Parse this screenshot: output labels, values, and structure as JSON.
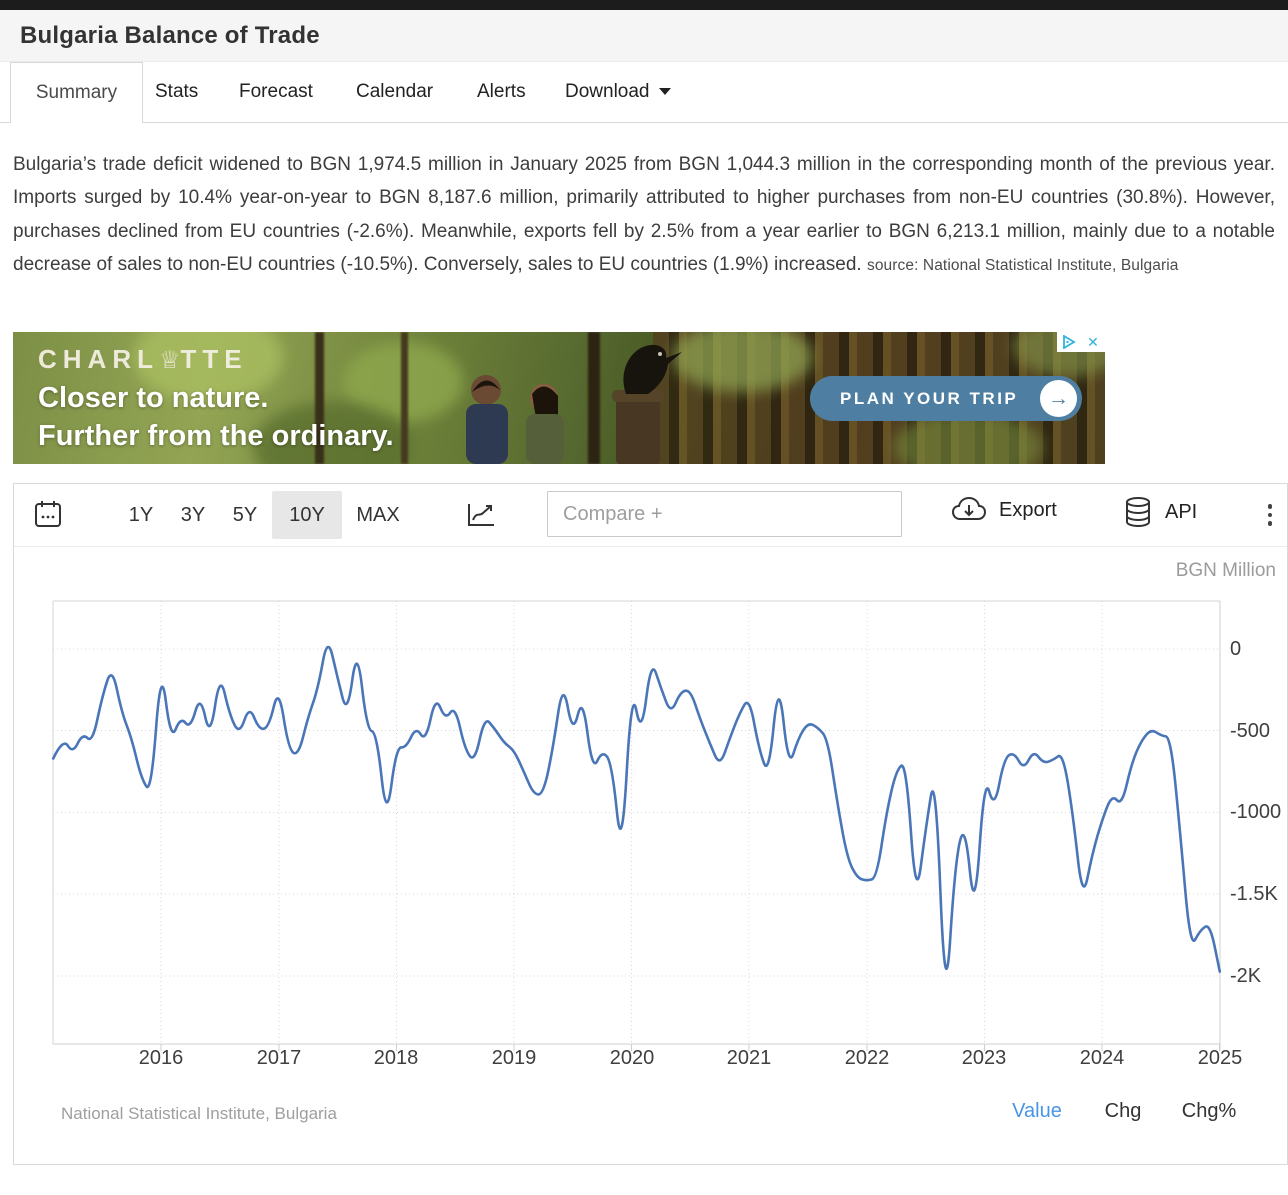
{
  "page": {
    "title": "Bulgaria Balance of Trade"
  },
  "tabs": [
    {
      "label": "Summary",
      "active": true
    },
    {
      "label": "Stats"
    },
    {
      "label": "Forecast"
    },
    {
      "label": "Calendar"
    },
    {
      "label": "Alerts"
    },
    {
      "label": "Download",
      "has_menu": true
    }
  ],
  "summary": {
    "text": "Bulgaria’s trade deficit widened to BGN 1,974.5 million in January 2025 from BGN 1,044.3 million in the corresponding month of the previous year. Imports surged by 10.4% year-on-year to BGN 8,187.6 million, primarily attributed to higher purchases from non-EU countries (30.8%). However, purchases declined from EU countries (-2.6%). Meanwhile, exports fell by 2.5% from a year earlier to BGN 6,213.1 million, mainly due to a notable decrease of sales to non-EU countries (-10.5%). Conversely, sales to EU countries (1.9%) increased.",
    "source_label": "source: National Statistical Institute, Bulgaria"
  },
  "ad": {
    "brand_left": "CHARL",
    "crown_glyph": "♕",
    "brand_right": "TTE",
    "tagline1": "Closer to nature.",
    "tagline2": "Further from the ordinary.",
    "cta_label": "PLAN YOUR TRIP",
    "cta_arrow_glyph": "→",
    "close_glyph": "✕"
  },
  "toolbar": {
    "ranges": [
      "1Y",
      "3Y",
      "5Y",
      "10Y",
      "MAX"
    ],
    "active_range": "10Y",
    "compare_placeholder": "Compare +",
    "export_label": "Export",
    "api_label": "API",
    "icons": {
      "calendar": "calendar-icon",
      "chart_type": "line-chart-icon",
      "export": "cloud-download-icon",
      "api": "database-icon",
      "menu": "kebab-menu-icon"
    }
  },
  "chart": {
    "source_note": "National Statistical Institute, Bulgaria",
    "links": [
      {
        "label": "Value",
        "active": true
      },
      {
        "label": "Chg"
      },
      {
        "label": "Chg%"
      }
    ]
  },
  "chart_data": {
    "type": "line",
    "title": "Bulgaria Balance of Trade",
    "unit": "BGN Million",
    "frequency": "monthly",
    "start": "2015-02",
    "end": "2025-01",
    "line_color": "#4a76b8",
    "grid": "dotted",
    "x_tick_labels": [
      "2016",
      "2017",
      "2018",
      "2019",
      "2020",
      "2021",
      "2022",
      "2023",
      "2024",
      "2025"
    ],
    "y_tick_labels": [
      "0",
      "-500",
      "-1000",
      "-1.5K",
      "-2K"
    ],
    "y_tick_values": [
      0,
      -500,
      -1000,
      -1500,
      -2000
    ],
    "ylim": [
      -2417,
      294
    ],
    "values": [
      -670,
      -545,
      -640,
      -515,
      -575,
      -290,
      -105,
      -390,
      -545,
      -795,
      -885,
      -80,
      -565,
      -415,
      -490,
      -275,
      -555,
      -145,
      -405,
      -525,
      -345,
      -495,
      -480,
      -225,
      -615,
      -655,
      -415,
      -245,
      85,
      -175,
      -415,
      30,
      -495,
      -510,
      -1065,
      -600,
      -605,
      -475,
      -570,
      -285,
      -435,
      -345,
      -615,
      -695,
      -415,
      -485,
      -575,
      -620,
      -750,
      -890,
      -890,
      -600,
      -190,
      -530,
      -280,
      -750,
      -620,
      -700,
      -1290,
      -220,
      -540,
      -60,
      -240,
      -400,
      -260,
      -250,
      -430,
      -580,
      -720,
      -550,
      -395,
      -290,
      -615,
      -780,
      -160,
      -735,
      -545,
      -450,
      -480,
      -550,
      -950,
      -1280,
      -1400,
      -1420,
      -1400,
      -1000,
      -740,
      -690,
      -1560,
      -1100,
      -720,
      -2250,
      -1300,
      -1050,
      -1660,
      -765,
      -985,
      -670,
      -630,
      -740,
      -620,
      -700,
      -680,
      -635,
      -1000,
      -1550,
      -1250,
      -1044.3,
      -890,
      -960,
      -700,
      -560,
      -490,
      -530,
      -540,
      -1150,
      -1835,
      -1720,
      -1680,
      -1974.5
    ]
  }
}
